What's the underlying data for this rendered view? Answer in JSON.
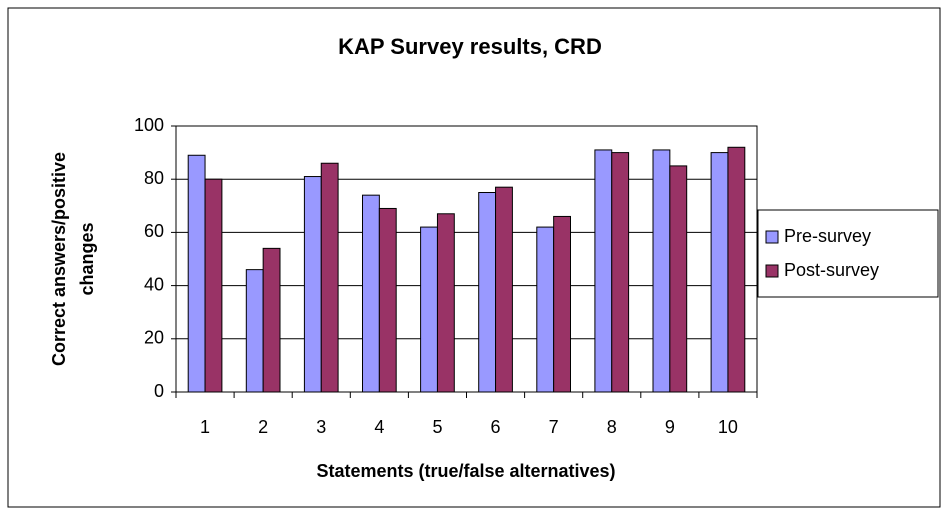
{
  "chart_data": {
    "type": "bar",
    "title": "KAP Survey results, CRD",
    "xlabel": "Statements (true/false alternatives)",
    "ylabel": [
      "Correct answers/positive",
      "changes"
    ],
    "categories": [
      "1",
      "2",
      "3",
      "4",
      "5",
      "6",
      "7",
      "8",
      "9",
      "10"
    ],
    "series": [
      {
        "name": "Pre-survey",
        "color": "#9999ff",
        "values": [
          89,
          46,
          81,
          74,
          62,
          75,
          62,
          91,
          91,
          90
        ]
      },
      {
        "name": "Post-survey",
        "color": "#993366",
        "values": [
          80,
          54,
          86,
          69,
          67,
          77,
          66,
          90,
          85,
          92
        ]
      }
    ],
    "ylim": [
      0,
      100
    ],
    "yticks": [
      0,
      20,
      40,
      60,
      80,
      100
    ],
    "grid": true,
    "legend": "right"
  }
}
